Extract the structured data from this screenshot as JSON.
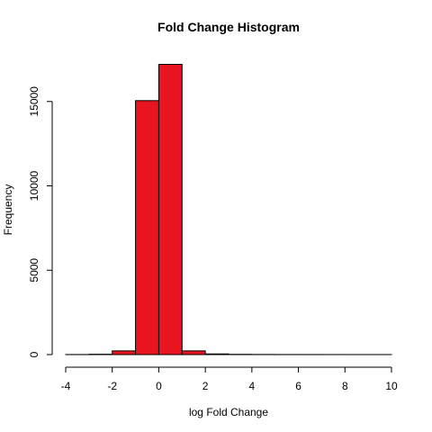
{
  "chart_data": {
    "type": "bar",
    "title": "Fold Change Histogram",
    "xlabel": "log Fold Change",
    "ylabel": "Frequency",
    "bar_color": "#e8141f",
    "grid": false,
    "xlim": [
      -4,
      10
    ],
    "ylim": [
      0,
      17200
    ],
    "x_ticks": [
      -4,
      -2,
      0,
      2,
      4,
      6,
      8,
      10
    ],
    "y_ticks": [
      0,
      5000,
      10000,
      15000
    ],
    "bins": [
      {
        "from": -4,
        "to": -3,
        "count": 5
      },
      {
        "from": -3,
        "to": -2,
        "count": 20
      },
      {
        "from": -2,
        "to": -1,
        "count": 220
      },
      {
        "from": -1,
        "to": 0,
        "count": 15050
      },
      {
        "from": 0,
        "to": 1,
        "count": 17200
      },
      {
        "from": 1,
        "to": 2,
        "count": 220
      },
      {
        "from": 2,
        "to": 3,
        "count": 40
      },
      {
        "from": 3,
        "to": 4,
        "count": 15
      },
      {
        "from": 4,
        "to": 5,
        "count": 8
      },
      {
        "from": 5,
        "to": 6,
        "count": 5
      },
      {
        "from": 6,
        "to": 7,
        "count": 4
      },
      {
        "from": 7,
        "to": 8,
        "count": 3
      },
      {
        "from": 8,
        "to": 9,
        "count": 2
      },
      {
        "from": 9,
        "to": 10,
        "count": 2
      }
    ]
  }
}
